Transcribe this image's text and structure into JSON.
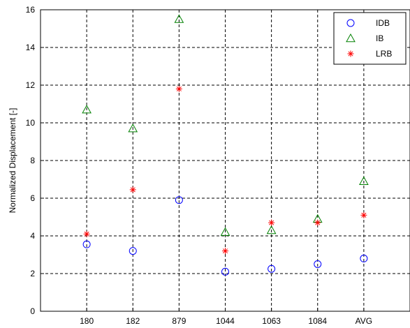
{
  "chart_data": {
    "type": "scatter",
    "categories": [
      "180",
      "182",
      "879",
      "1044",
      "1063",
      "1084",
      "AVG"
    ],
    "ylabel": "Normalized Displacement [-]",
    "xlabel": "",
    "ylim": [
      0,
      16
    ],
    "yticks": [
      "0",
      "2",
      "4",
      "6",
      "8",
      "10",
      "12",
      "14",
      "16"
    ],
    "grid": true,
    "legend_position": "top-right",
    "series": [
      {
        "name": "IDB",
        "marker": "circle",
        "color": "#0000ff",
        "values": [
          3.55,
          3.2,
          5.9,
          2.1,
          2.25,
          2.5,
          2.8
        ]
      },
      {
        "name": "IB",
        "marker": "triangle",
        "color": "#008000",
        "values": [
          10.7,
          9.7,
          15.5,
          4.2,
          4.3,
          4.9,
          6.9
        ]
      },
      {
        "name": "LRB",
        "marker": "asterisk",
        "color": "#ff0000",
        "values": [
          4.1,
          6.45,
          11.8,
          3.2,
          4.7,
          4.7,
          5.1
        ]
      }
    ]
  }
}
